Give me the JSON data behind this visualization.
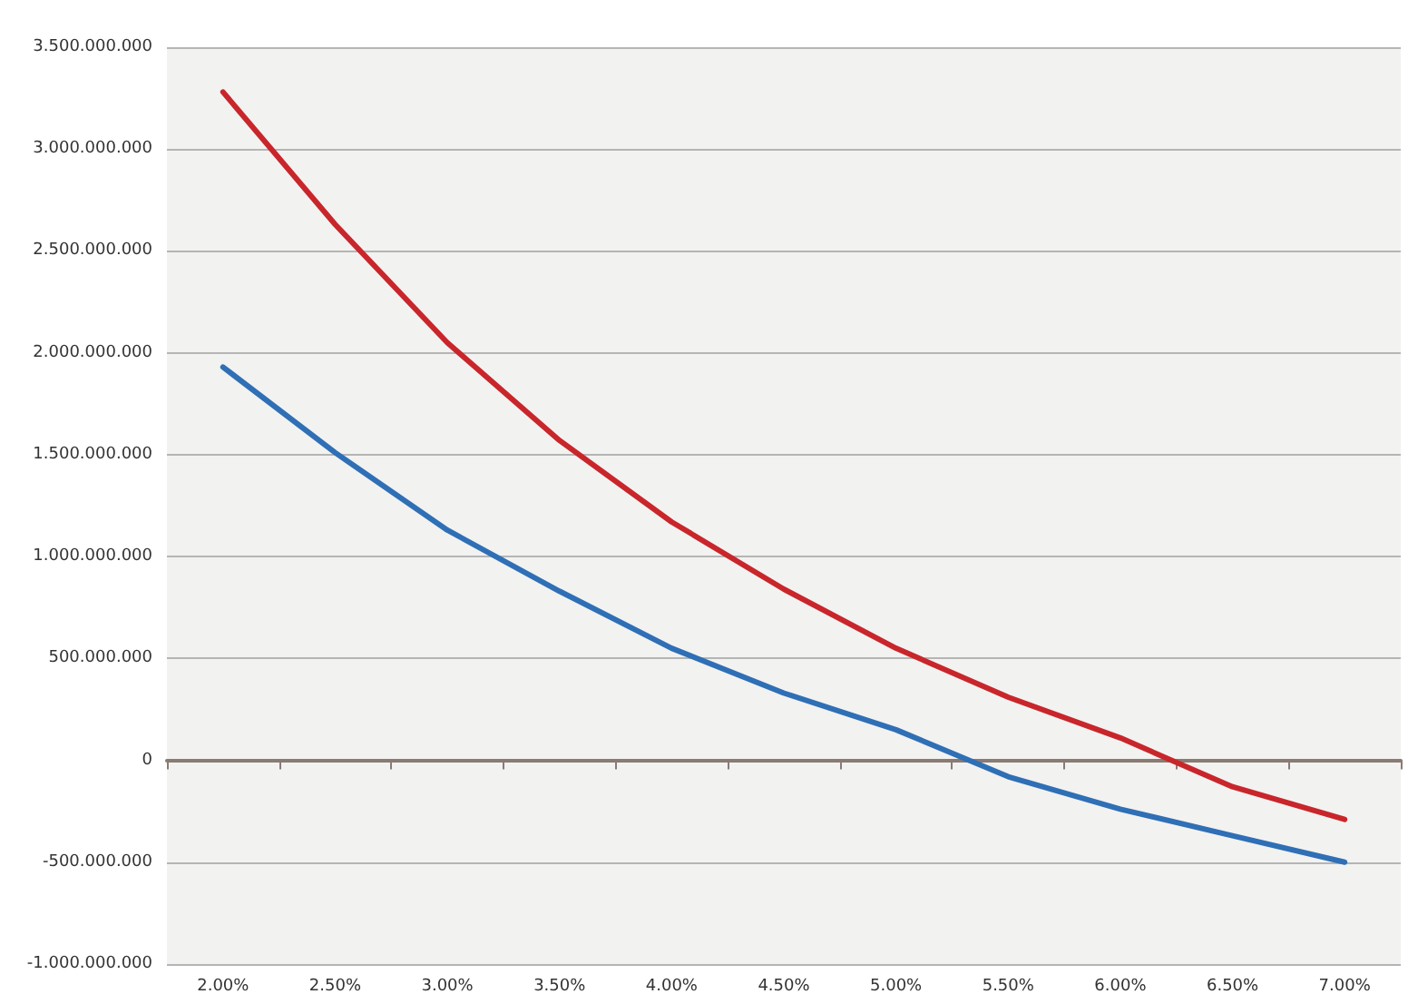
{
  "chart_data": {
    "type": "line",
    "categories": [
      "2.00%",
      "2.50%",
      "3.00%",
      "3.50%",
      "4.00%",
      "4.50%",
      "5.00%",
      "5.50%",
      "6.00%",
      "6.50%",
      "7.00%"
    ],
    "series": [
      {
        "color": "#c8262b",
        "values": [
          3280000000,
          2630000000,
          2050000000,
          1570000000,
          1170000000,
          840000000,
          550000000,
          310000000,
          110000000,
          -130000000,
          -290000000
        ]
      },
      {
        "color": "#2f6fb5",
        "values": [
          1930000000,
          1510000000,
          1130000000,
          830000000,
          550000000,
          330000000,
          150000000,
          -80000000,
          -240000000,
          -370000000,
          -500000000
        ]
      }
    ],
    "ylim": [
      -1000000000,
      3500000000
    ],
    "yticks": [
      {
        "value": -1000000000,
        "label": "-1.000.000.000"
      },
      {
        "value": -500000000,
        "label": "-500.000.000"
      },
      {
        "value": 0,
        "label": "0"
      },
      {
        "value": 500000000,
        "label": "500.000.000"
      },
      {
        "value": 1000000000,
        "label": "1.000.000.000"
      },
      {
        "value": 1500000000,
        "label": "1.500.000.000"
      },
      {
        "value": 2000000000,
        "label": "2.000.000.000"
      },
      {
        "value": 2500000000,
        "label": "2.500.000.000"
      },
      {
        "value": 3000000000,
        "label": "3.000.000.000"
      },
      {
        "value": 3500000000,
        "label": "3.500.000.000"
      }
    ],
    "grid": "y",
    "marker": "none",
    "line_style": "solid"
  }
}
